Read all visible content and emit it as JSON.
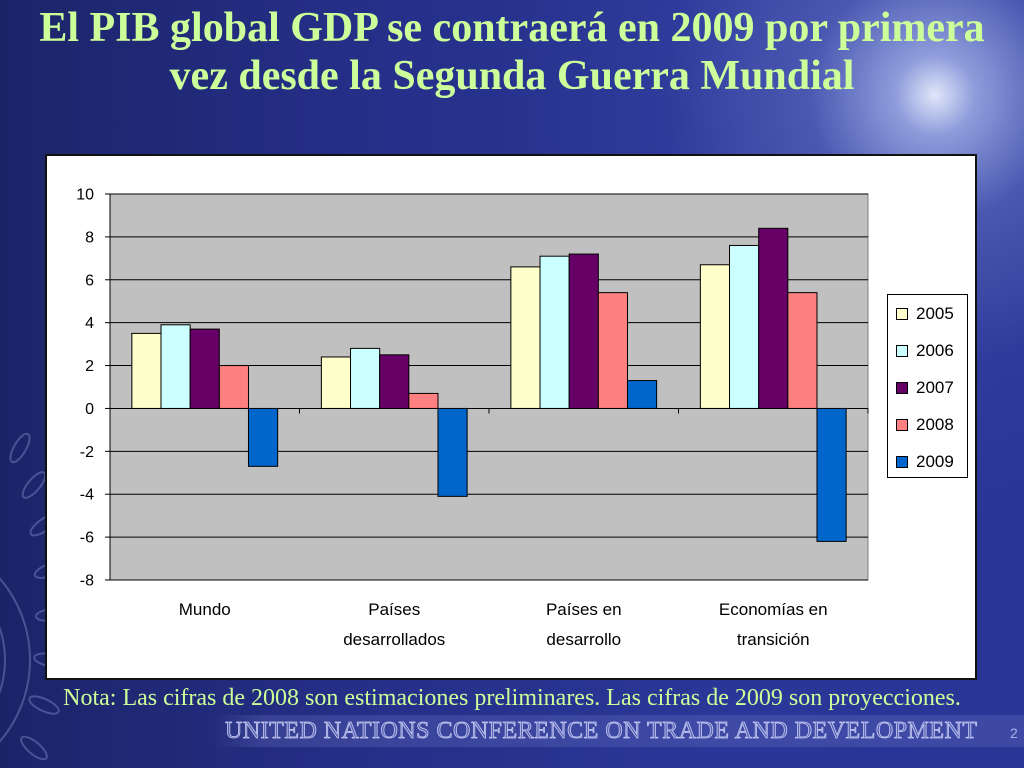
{
  "slide": {
    "title_line1": "El PIB global GDP se contraerá en 2009 por primera",
    "title_line2": "vez desde la Segunda Guerra Mundial",
    "note": "Nota: Las cifras de 2008 son estimaciones preliminares. Las cifras de 2009 son proyecciones.",
    "footer": "UNITED NATIONS CONFERENCE ON TRADE AND DEVELOPMENT",
    "page_number": "2"
  },
  "colors": {
    "background": "#26308A",
    "title_text": "#CCFF99",
    "note_text": "#CCFF99",
    "footer_text": "#C6CBF3",
    "chart_background": "#FFFFFF",
    "plot_background": "#C0C0C0",
    "gridline": "#000000"
  },
  "icons": {
    "watermark": "un-emblem-laurel-icon"
  },
  "chart_data": {
    "type": "bar",
    "categories": [
      "Mundo",
      "Países desarrollados",
      "Países en desarrollo",
      "Economías en transición"
    ],
    "series": [
      {
        "name": "2005",
        "color": "#FFFFCC",
        "values": [
          3.5,
          2.4,
          6.6,
          6.7
        ]
      },
      {
        "name": "2006",
        "color": "#CCFFFF",
        "values": [
          3.9,
          2.8,
          7.1,
          7.6
        ]
      },
      {
        "name": "2007",
        "color": "#660066",
        "values": [
          3.7,
          2.5,
          7.2,
          8.4
        ]
      },
      {
        "name": "2008",
        "color": "#FF8080",
        "values": [
          2.0,
          0.7,
          5.4,
          5.4
        ]
      },
      {
        "name": "2009",
        "color": "#0066CC",
        "values": [
          -2.7,
          -4.1,
          1.3,
          -6.2
        ]
      }
    ],
    "yticks": [
      10,
      8,
      6,
      4,
      2,
      0,
      -2,
      -4,
      -6,
      -8
    ],
    "ylim": [
      -8,
      10
    ],
    "title": "",
    "xlabel": "",
    "ylabel": "",
    "grid": true,
    "legend": "right"
  }
}
